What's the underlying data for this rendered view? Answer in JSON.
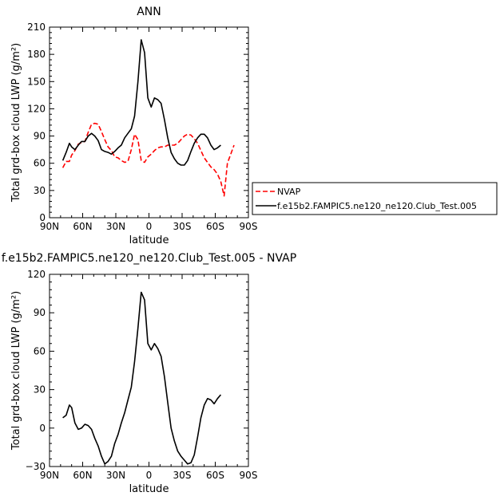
{
  "chart_data": [
    {
      "type": "line",
      "title": "ANN",
      "xlabel": "latitude",
      "ylabel": "Total grd-box cloud LWP (g/m²)",
      "xlim": [
        90,
        -90
      ],
      "ylim": [
        0,
        210
      ],
      "x_ticks": [
        90,
        60,
        30,
        0,
        -30,
        -60,
        -90
      ],
      "x_tick_labels": [
        "90N",
        "60N",
        "30N",
        "0",
        "30S",
        "60S",
        "90S"
      ],
      "y_ticks": [
        0,
        30,
        60,
        90,
        120,
        150,
        180,
        210
      ],
      "y_tick_labels": [
        "0",
        "30",
        "60",
        "90",
        "120",
        "150",
        "180",
        "210"
      ],
      "legend_position": "right",
      "series": [
        {
          "name": "NVAP",
          "color": "#ff0000",
          "dash": "dashed",
          "x": [
            78,
            75,
            72,
            70,
            67,
            64,
            61,
            58,
            55,
            52,
            49,
            46,
            43,
            40,
            37,
            34,
            31,
            28,
            25,
            22,
            19,
            16,
            13,
            10,
            7,
            4,
            1,
            -2,
            -5,
            -8,
            -11,
            -14,
            -17,
            -20,
            -23,
            -26,
            -29,
            -32,
            -35,
            -38,
            -41,
            -44,
            -47,
            -50,
            -53,
            -56,
            -59,
            -62,
            -65,
            -68,
            -71,
            -74,
            -77
          ],
          "y": [
            55,
            62,
            62,
            69,
            74,
            81,
            83,
            84,
            94,
            103,
            104,
            103,
            95,
            86,
            78,
            74,
            67,
            66,
            63,
            61,
            62,
            75,
            92,
            86,
            63,
            61,
            67,
            70,
            74,
            77,
            78,
            78,
            80,
            80,
            80,
            82,
            86,
            90,
            92,
            91,
            87,
            82,
            74,
            66,
            61,
            56,
            53,
            48,
            40,
            24,
            60,
            70,
            80
          ]
        },
        {
          "name": "f.e15b2.FAMPIC5.ne120_ne120.Club_Test.005",
          "color": "#000000",
          "dash": "solid",
          "x": [
            78,
            75,
            72,
            70,
            67,
            64,
            61,
            58,
            55,
            52,
            49,
            46,
            43,
            40,
            37,
            34,
            31,
            28,
            25,
            22,
            19,
            16,
            13,
            10,
            7,
            4,
            1,
            -2,
            -5,
            -8,
            -11,
            -14,
            -17,
            -20,
            -23,
            -26,
            -29,
            -32,
            -35,
            -38,
            -41,
            -44,
            -47,
            -50,
            -53,
            -56,
            -59,
            -62,
            -65
          ],
          "y": [
            63,
            72,
            82,
            78,
            75,
            80,
            84,
            84,
            90,
            93,
            90,
            85,
            75,
            73,
            72,
            70,
            73,
            77,
            80,
            88,
            93,
            98,
            112,
            150,
            196,
            182,
            132,
            122,
            132,
            130,
            126,
            108,
            88,
            72,
            65,
            60,
            58,
            58,
            63,
            73,
            82,
            88,
            92,
            92,
            88,
            80,
            75,
            77,
            80
          ]
        }
      ]
    },
    {
      "type": "line",
      "title": "f.e15b2.FAMPIC5.ne120_ne120.Club_Test.005 - NVAP",
      "xlabel": "latitude",
      "ylabel": "Total grd-box cloud LWP (g/m²)",
      "xlim": [
        90,
        -90
      ],
      "ylim": [
        -30,
        120
      ],
      "x_ticks": [
        90,
        60,
        30,
        0,
        -30,
        -60,
        -90
      ],
      "x_tick_labels": [
        "90N",
        "60N",
        "30N",
        "0",
        "30S",
        "60S",
        "90S"
      ],
      "y_ticks": [
        -30,
        0,
        30,
        60,
        90,
        120
      ],
      "y_tick_labels": [
        "−30",
        "0",
        "30",
        "60",
        "90",
        "120"
      ],
      "series": [
        {
          "color": "#000000",
          "dash": "solid",
          "x": [
            78,
            75,
            72,
            70,
            67,
            64,
            61,
            58,
            55,
            52,
            49,
            46,
            43,
            40,
            37,
            34,
            31,
            28,
            25,
            22,
            19,
            16,
            13,
            10,
            7,
            4,
            1,
            -2,
            -5,
            -8,
            -11,
            -14,
            -17,
            -20,
            -23,
            -26,
            -29,
            -32,
            -35,
            -38,
            -41,
            -44,
            -47,
            -50,
            -53,
            -56,
            -59,
            -62,
            -65
          ],
          "y": [
            8,
            10,
            18,
            16,
            4,
            -1,
            0,
            3,
            2,
            -1,
            -8,
            -14,
            -22,
            -28,
            -26,
            -22,
            -12,
            -5,
            4,
            12,
            22,
            32,
            52,
            78,
            106,
            100,
            66,
            61,
            66,
            62,
            56,
            40,
            20,
            0,
            -10,
            -18,
            -22,
            -25,
            -28,
            -27,
            -21,
            -7,
            8,
            18,
            23,
            22,
            19,
            23,
            26
          ]
        }
      ]
    }
  ]
}
